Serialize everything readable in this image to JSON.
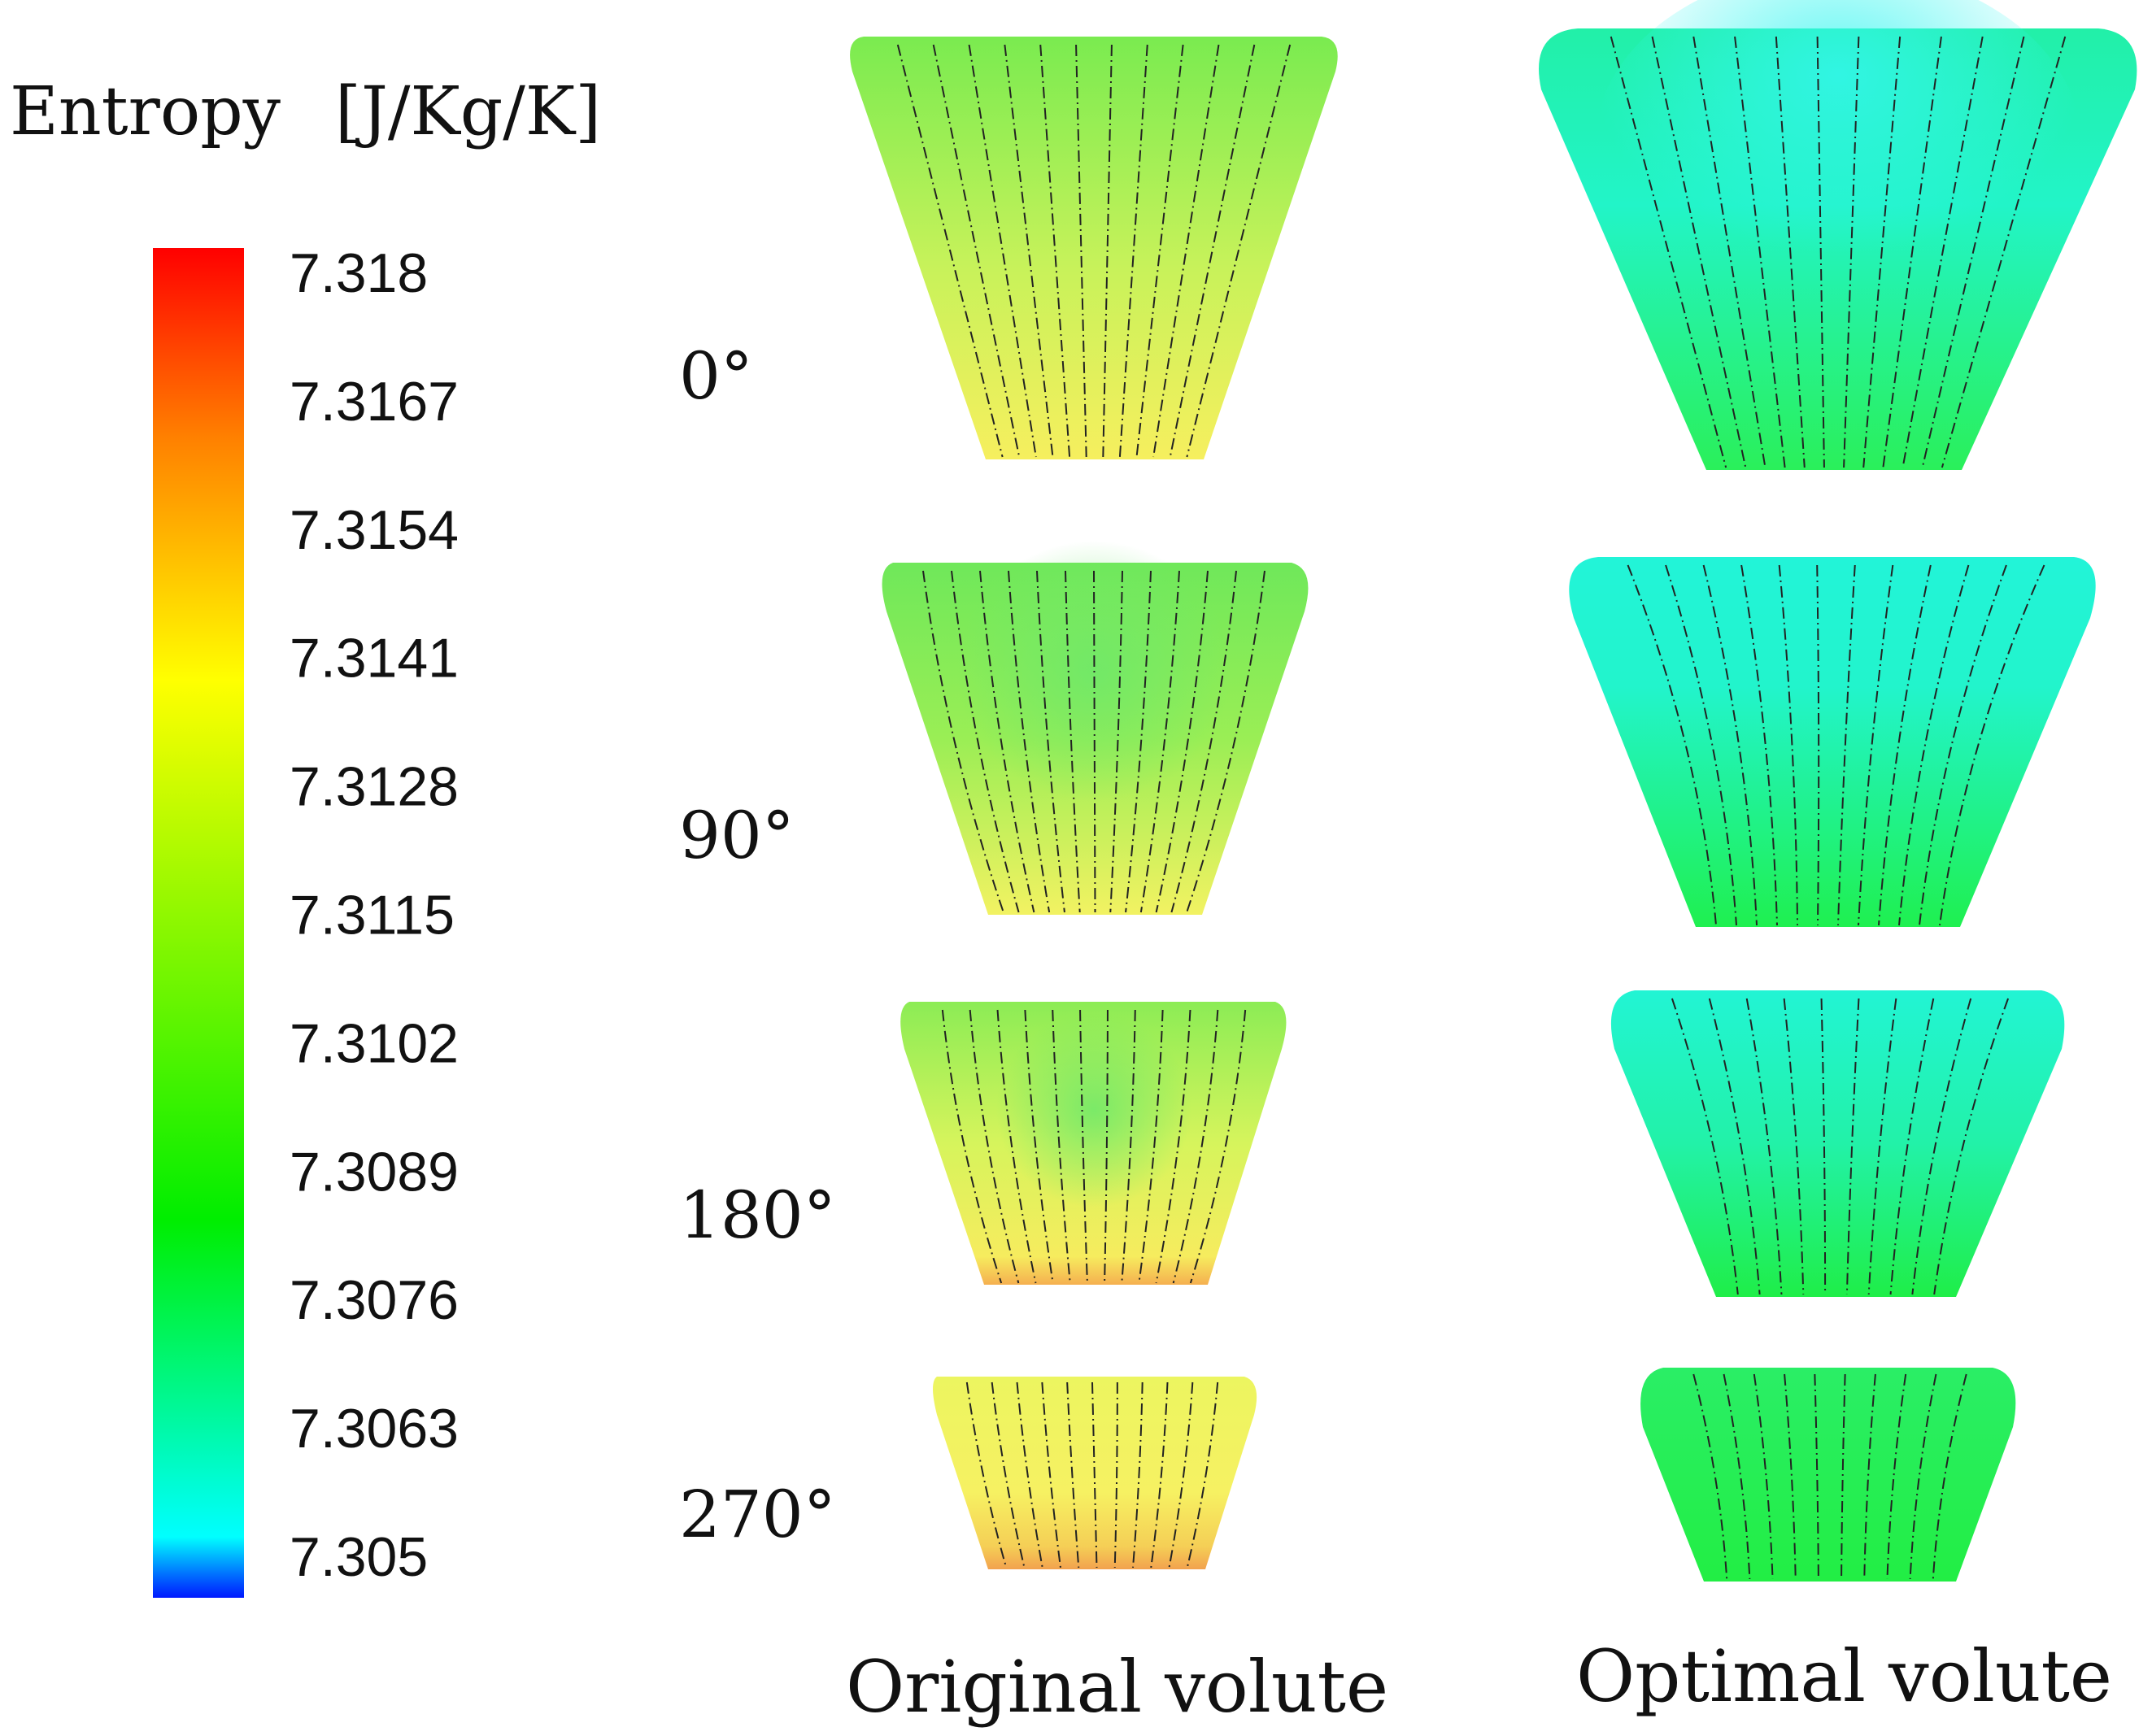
{
  "legend": {
    "title": "Entropy",
    "unit": "[J/Kg/K]",
    "ticks": [
      "7.318",
      "7.3167",
      "7.3154",
      "7.3141",
      "7.3128",
      "7.3115",
      "7.3102",
      "7.3089",
      "7.3076",
      "7.3063",
      "7.305"
    ],
    "colormap": [
      "#0000ff",
      "#00ffff",
      "#00ff00",
      "#ffff00",
      "#ff0000"
    ]
  },
  "rows": [
    {
      "label": "0°"
    },
    {
      "label": "90°"
    },
    {
      "label": "180°"
    },
    {
      "label": "270°"
    }
  ],
  "columns": [
    {
      "label": "Original volute"
    },
    {
      "label": "Optimal volute"
    }
  ],
  "colors": {
    "original_top": "#7eec52",
    "original_bottom": "#f4f36a",
    "original_hot": "#f0a050",
    "optimal_top": "#24f6c4",
    "optimal_bottom": "#1ff04e",
    "streamline": "#222222"
  }
}
